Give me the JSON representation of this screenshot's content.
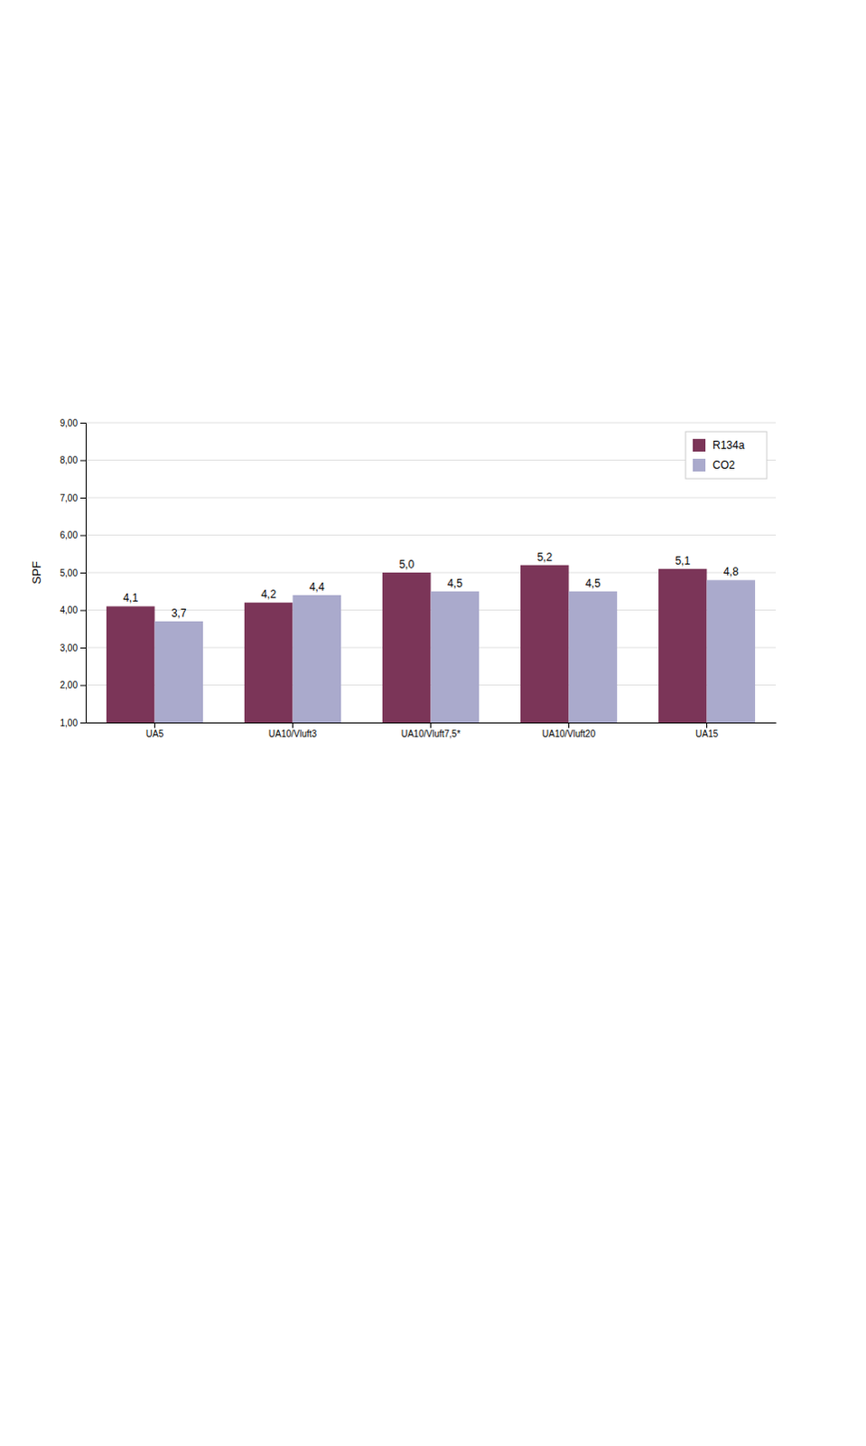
{
  "chart_data": {
    "type": "bar",
    "categories": [
      "UA5",
      "UA10/Vluft3",
      "UA10/Vluft7,5*",
      "UA10/Vluft20",
      "UA15"
    ],
    "series": [
      {
        "name": "R134a",
        "color": "#7B3558",
        "values": [
          4.1,
          4.2,
          5.0,
          5.2,
          5.1
        ],
        "value_labels": [
          "4,1",
          "4,2",
          "5,0",
          "5,2",
          "5,1"
        ]
      },
      {
        "name": "CO2",
        "color": "#AAAACC",
        "values": [
          3.7,
          4.4,
          4.5,
          4.5,
          4.8
        ],
        "value_labels": [
          "3,7",
          "4,4",
          "4,5",
          "4,5",
          "4,8"
        ]
      }
    ],
    "ylabel": "SPF",
    "ylim": [
      1.0,
      9.0
    ],
    "yticks": [
      {
        "value": 1.0,
        "label": "1,00"
      },
      {
        "value": 2.0,
        "label": "2,00"
      },
      {
        "value": 3.0,
        "label": "3,00"
      },
      {
        "value": 4.0,
        "label": "4,00"
      },
      {
        "value": 5.0,
        "label": "5,00"
      },
      {
        "value": 6.0,
        "label": "6,00"
      },
      {
        "value": 7.0,
        "label": "7,00"
      },
      {
        "value": 8.0,
        "label": "8,00"
      },
      {
        "value": 9.0,
        "label": "9,00"
      }
    ],
    "grid": true,
    "legend": "upper right",
    "data_labels": true
  }
}
